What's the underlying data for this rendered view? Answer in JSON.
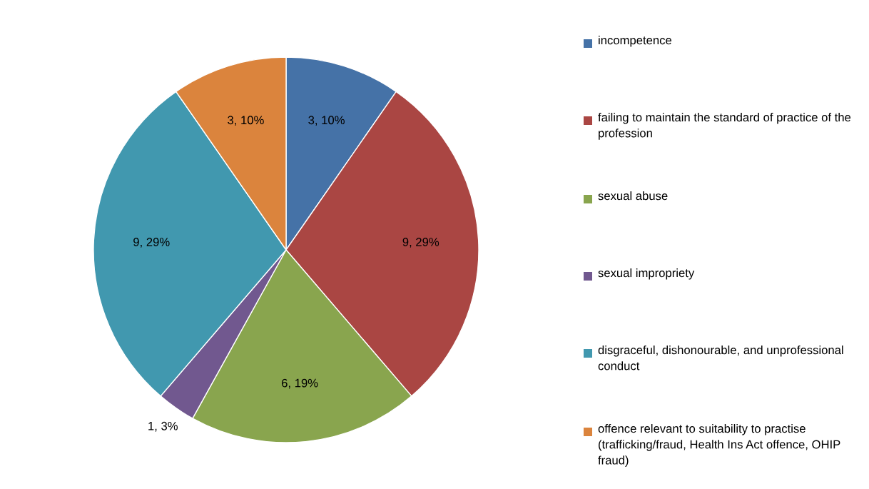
{
  "chart_data": {
    "type": "pie",
    "categories": [
      "incompetence",
      "failing to maintain the standard of practice of the profession",
      "sexual abuse",
      "sexual impropriety",
      "disgraceful, dishonourable, and unprofessional conduct",
      "offence relevant to suitability to practise (trafficking/fraud, Health Ins Act offence, OHIP fraud)"
    ],
    "values": [
      3,
      9,
      6,
      1,
      9,
      3
    ],
    "colors": [
      "#4572a7",
      "#aa4643",
      "#89a54e",
      "#71588f",
      "#4198af",
      "#db843d"
    ],
    "value_labels": [
      "3, 10%",
      "9, 29%",
      "6, 19%",
      "1, 3%",
      "9, 29%",
      "3, 10%"
    ],
    "legend": "right"
  }
}
